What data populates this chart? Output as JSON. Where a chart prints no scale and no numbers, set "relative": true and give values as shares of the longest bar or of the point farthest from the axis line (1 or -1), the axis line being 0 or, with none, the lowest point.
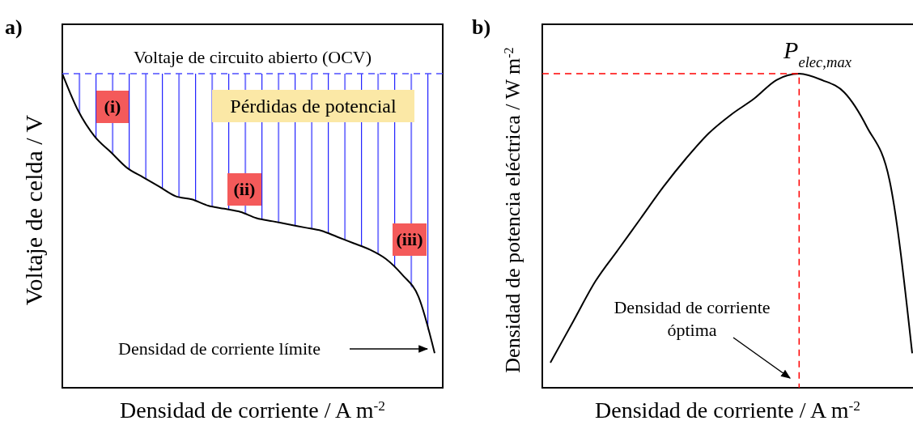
{
  "chart_data": [
    {
      "type": "line",
      "title": "a)",
      "xlabel": "Densidad de corriente / A m$^{-2}$",
      "ylabel": "Voltaje de celda / V",
      "relative": true,
      "categories": [
        null,
        null,
        null,
        null,
        null,
        null,
        null,
        null,
        null,
        null,
        null,
        null,
        null,
        null,
        null,
        null,
        null,
        null,
        null,
        null,
        null,
        null,
        null,
        null
      ],
      "series": [
        {
          "color": "#000000",
          "values": [
            1.0,
            0.88,
            0.8,
            0.75,
            0.7,
            0.67,
            0.64,
            0.61,
            0.6,
            0.58,
            0.57,
            0.56,
            0.54,
            0.53,
            0.52,
            0.51,
            0.5,
            0.48,
            0.46,
            0.44,
            0.41,
            0.36,
            0.29,
            0.11
          ],
          "lower": [
            1.0,
            0.88,
            0.8,
            0.75,
            0.7,
            0.67,
            0.64,
            0.61,
            0.6,
            0.58,
            0.57,
            0.56,
            0.54,
            0.53,
            0.52,
            0.51,
            0.5,
            0.48,
            0.46,
            0.44,
            0.41,
            0.36,
            0.29,
            0.11
          ],
          "upper": [
            1,
            1,
            1,
            1,
            1,
            1,
            1,
            1,
            1,
            1,
            1,
            1,
            1,
            1,
            1,
            1,
            1,
            1,
            1,
            1,
            1,
            1,
            1,
            1
          ]
        }
      ],
      "ref_lines": [
        {
          "axis": "y",
          "value": 1,
          "label": "Voltaje de circuito abierto (OCV)",
          "color": "#4d4dff",
          "line_style": "dashed"
        }
      ],
      "annotations": [
        "(i)",
        "(ii)",
        "(iii)",
        "Pérdidas de potencial",
        "Densidad de corriente límite"
      ]
    },
    {
      "type": "line",
      "title": "b)",
      "xlabel": "Densidad de corriente / A m$^{-2}$",
      "ylabel": "Densidad de potencia eléctrica / W m$^{-2}$",
      "relative": true,
      "categories": [
        null,
        null,
        null,
        null,
        null,
        null,
        null,
        null,
        null,
        null,
        null,
        null,
        null,
        null,
        null,
        null,
        null
      ],
      "series": [
        {
          "color": "#000000",
          "values": [
            0.08,
            0.21,
            0.34,
            0.44,
            0.54,
            0.64,
            0.73,
            0.81,
            0.87,
            0.92,
            0.98,
            1.0,
            0.98,
            0.94,
            0.83,
            0.66,
            0.11
          ]
        }
      ],
      "ref_lines": [
        {
          "axis": "y",
          "value": 1,
          "color": "#ff0000",
          "line_style": "dashed"
        }
      ],
      "annotations": [
        "P$_{elec,max}$",
        "Densidad de corriente óptima"
      ]
    }
  ]
}
